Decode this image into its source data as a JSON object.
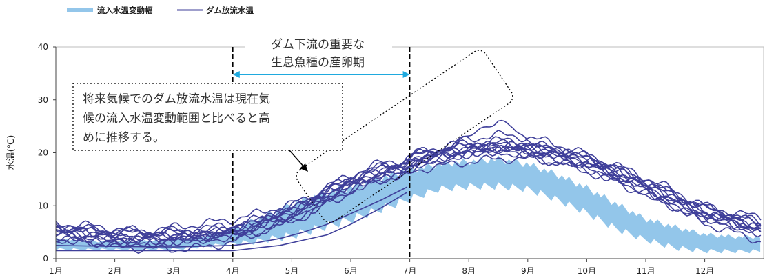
{
  "chart_data": {
    "type": "area",
    "ylabel": "水温(℃)",
    "ylim": [
      0,
      40
    ],
    "yticks": [
      0,
      10,
      20,
      30,
      40
    ],
    "categories": [
      "1月",
      "2月",
      "3月",
      "4月",
      "5月",
      "6月",
      "7月",
      "8月",
      "9月",
      "10月",
      "11月",
      "12月"
    ],
    "legend": {
      "position": "top-left",
      "entries": [
        "流入水温変動幅",
        "ダム放流水温"
      ]
    },
    "colors": {
      "band": "#93c6ea",
      "line": "#3f3f9a",
      "arrow": "#1fa9de",
      "axis": "#444444"
    },
    "inflow_band": {
      "name": "流入水温変動幅",
      "months": [
        1,
        1.5,
        2,
        2.5,
        3,
        3.5,
        4,
        4.3,
        4.6,
        5,
        5.5,
        6,
        6.5,
        7,
        7.5,
        8,
        8.5,
        9,
        9.5,
        10,
        10.5,
        11,
        11.5,
        12,
        12.5,
        12.95
      ],
      "low": [
        1.5,
        1.5,
        1.5,
        1.5,
        1.5,
        2.0,
        2.5,
        2.5,
        3.0,
        3.5,
        5.0,
        6.5,
        8.5,
        10.5,
        12.5,
        13.0,
        13.0,
        12.5,
        10.5,
        8.0,
        5.0,
        3.0,
        1.5,
        1.0,
        1.0,
        1.0
      ],
      "high": [
        4.0,
        3.5,
        3.5,
        3.5,
        3.8,
        4.5,
        6.0,
        7.5,
        9.0,
        11.0,
        13.0,
        14.5,
        16.0,
        17.5,
        18.5,
        19.0,
        19.5,
        18.5,
        16.5,
        14.0,
        11.0,
        8.0,
        6.5,
        5.0,
        4.5,
        4.5
      ]
    },
    "dam_discharge": {
      "name": "ダム放流水温",
      "months": [
        1,
        1.5,
        2,
        2.5,
        3,
        3.5,
        4,
        4.3,
        4.6,
        5,
        5.3,
        5.6,
        6,
        6.3,
        6.6,
        6.9,
        7.1,
        7.5,
        8,
        8.5,
        9,
        9.5,
        10,
        10.5,
        11,
        11.5,
        12,
        12.5,
        12.95
      ],
      "median": [
        5.0,
        4.5,
        4.0,
        3.8,
        4.0,
        4.3,
        5.0,
        5.8,
        7.0,
        8.5,
        10.0,
        12.0,
        14.0,
        15.5,
        16.5,
        17.0,
        18.5,
        19.5,
        20.5,
        21.0,
        20.5,
        19.5,
        18.0,
        16.0,
        13.5,
        11.0,
        8.5,
        7.0,
        5.5
      ],
      "offsets": [
        -1.2,
        0.9,
        -0.4,
        1.4,
        0.2,
        -0.9,
        1.8,
        -1.6,
        0.6,
        2.4,
        -2.2,
        0.0,
        1.1
      ],
      "extra_high_run": {
        "months": [
          7,
          7.5,
          8,
          8.25,
          8.5,
          8.75,
          9,
          9.5
        ],
        "values": [
          18.5,
          20.0,
          23.5,
          24.5,
          26.0,
          25.0,
          22.0,
          20.5
        ]
      },
      "low_runs": [
        {
          "months": [
            1,
            2,
            3,
            4,
            4.4,
            4.8,
            5.2,
            5.6,
            6,
            6.5,
            6.95
          ],
          "values": [
            1.5,
            1.5,
            1.5,
            1.5,
            2.0,
            2.5,
            3.5,
            4.5,
            6.5,
            9.5,
            12.5
          ]
        },
        {
          "months": [
            1,
            2,
            3,
            4,
            4.4,
            4.8,
            5.2,
            5.6,
            6,
            6.5,
            6.95
          ],
          "values": [
            2.5,
            2.3,
            2.2,
            2.5,
            3.0,
            3.8,
            5.0,
            6.5,
            8.5,
            11.0,
            13.5
          ]
        }
      ]
    },
    "spawning_period": {
      "label_line1": "ダム下流の重要な",
      "label_line2": "生息魚種の産卵期",
      "start_month": 4,
      "end_month": 7
    },
    "annotation": {
      "line1": "将来気候でのダム放流水温は現在気",
      "line2": "候の流入水温変動範囲と比べると高",
      "line3": "めに推移する。"
    }
  }
}
